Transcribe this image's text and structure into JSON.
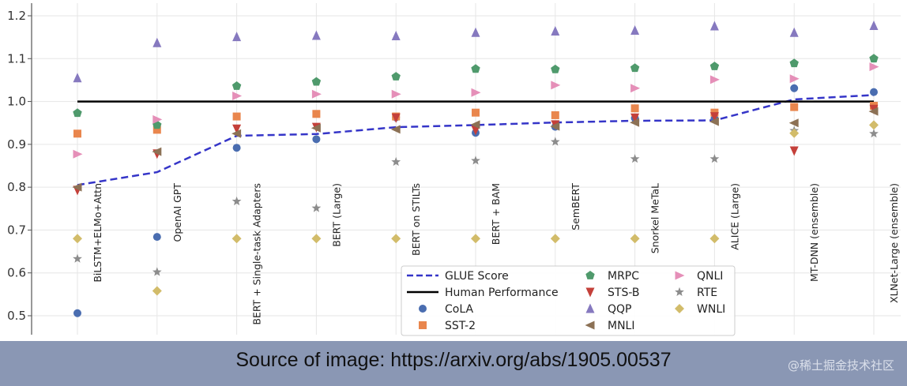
{
  "chart_data": {
    "type": "scatter",
    "categories": [
      "BiLSTM+ELMo+Attn",
      "OpenAI GPT",
      "BERT + Single-task Adapters",
      "BERT (Large)",
      "BERT on STILTs",
      "BERT + BAM",
      "SemBERT",
      "Snorkel MeTaL",
      "ALICE (Large)",
      "MT-DNN (ensemble)",
      "XLNet-Large (ensemble)"
    ],
    "ylim": [
      0.47,
      1.22
    ],
    "yticks": [
      "0.5",
      "0.6",
      "0.7",
      "0.8",
      "0.9",
      "1.0",
      "1.1",
      "1.2"
    ],
    "grid": true,
    "legend_position": "bottom-center",
    "series": [
      {
        "name": "GLUE Score",
        "kind": "line",
        "color": "#3535c8",
        "values": [
          0.805,
          0.835,
          0.92,
          0.924,
          0.94,
          0.945,
          0.951,
          0.955,
          0.956,
          1.005,
          1.015
        ]
      },
      {
        "name": "Human Performance",
        "kind": "hline",
        "color": "#000000",
        "values": [
          1.0,
          1.0,
          1.0,
          1.0,
          1.0,
          1.0,
          1.0,
          1.0,
          1.0,
          1.0,
          1.0
        ]
      },
      {
        "name": "CoLA",
        "marker": "circle",
        "color": "#4a6db0",
        "values": [
          0.506,
          0.684,
          0.892,
          0.912,
          0.963,
          0.927,
          0.941,
          0.961,
          0.96,
          1.031,
          1.022
        ]
      },
      {
        "name": "SST-2",
        "marker": "square",
        "color": "#e9864d",
        "values": [
          0.925,
          0.934,
          0.965,
          0.971,
          0.965,
          0.974,
          0.968,
          0.984,
          0.974,
          0.987,
          0.99
        ]
      },
      {
        "name": "MRPC",
        "marker": "pentagon",
        "color": "#4f9a6c",
        "values": [
          0.973,
          0.945,
          1.036,
          1.046,
          1.058,
          1.076,
          1.075,
          1.078,
          1.082,
          1.089,
          1.1
        ]
      },
      {
        "name": "STS-B",
        "marker": "triangle-down",
        "color": "#c4403a",
        "values": [
          0.793,
          0.878,
          0.936,
          0.94,
          0.962,
          0.933,
          0.946,
          0.962,
          0.965,
          0.885,
          0.982
        ]
      },
      {
        "name": "QQP",
        "marker": "triangle-up",
        "color": "#8679bf",
        "values": [
          1.055,
          1.137,
          1.151,
          1.154,
          1.153,
          1.161,
          1.164,
          1.166,
          1.176,
          1.161,
          1.177
        ]
      },
      {
        "name": "MNLI",
        "marker": "triangle-left",
        "color": "#8c7155",
        "values": [
          0.8,
          0.883,
          0.925,
          0.938,
          0.935,
          0.946,
          0.942,
          0.951,
          0.953,
          0.95,
          0.977
        ]
      },
      {
        "name": "QNLI",
        "marker": "triangle-right",
        "color": "#e58fb8",
        "values": [
          0.877,
          0.958,
          1.013,
          1.017,
          1.017,
          1.021,
          1.038,
          1.031,
          1.051,
          1.053,
          1.081
        ]
      },
      {
        "name": "RTE",
        "marker": "star",
        "color": "#8c8c8c",
        "values": [
          0.633,
          0.602,
          0.767,
          0.751,
          0.859,
          0.862,
          0.906,
          0.866,
          0.866,
          0.932,
          0.925
        ]
      },
      {
        "name": "WNLI",
        "marker": "diamond",
        "color": "#d2bc6a",
        "values": [
          0.68,
          0.558,
          0.68,
          0.68,
          0.68,
          0.68,
          0.68,
          0.68,
          0.68,
          0.926,
          0.945
        ]
      }
    ]
  },
  "caption": "Source of image: https://arxiv.org/abs/1905.00537",
  "watermark": "@稀土掘金技术社区"
}
